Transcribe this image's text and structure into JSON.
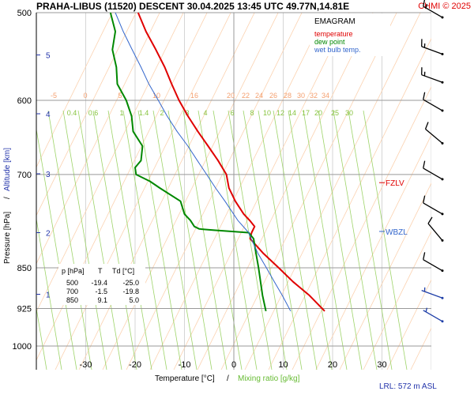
{
  "header": {
    "title": "PRAHA-LIBUS (11520)   DESCENT   30.04.2025 13:45 UTC  49.77N,14.81E",
    "brand": "CHMI © 2025"
  },
  "legend": {
    "title": "EMAGRAM",
    "items": [
      {
        "label": "temperature",
        "color": "#e00000"
      },
      {
        "label": "dew point",
        "color": "#008800"
      },
      {
        "label": "wet bulb temp.",
        "color": "#3366cc"
      }
    ]
  },
  "axes": {
    "x_label_part1": "Temperature [°C]",
    "x_label_sep": "/",
    "x_label_part2": "Mixing ratio [g/kg]",
    "y_label_part1": "Pressure [hPa]",
    "y_label_sep": "/",
    "y_label_part2": "Altitude [km]"
  },
  "levels": {
    "fzlv": "FZLV",
    "wbzl": "WBZL"
  },
  "table": {
    "header": [
      "p [hPa]",
      "T",
      "Td [°C]"
    ],
    "rows": [
      [
        "500",
        "-19.4",
        "-25.0"
      ],
      [
        "700",
        "-1.5",
        "-19.8"
      ],
      [
        "850",
        "9.1",
        "5.0"
      ]
    ]
  },
  "lrl": "LRL: 572 m ASL",
  "chart_data": {
    "type": "line",
    "title": "EMAGRAM",
    "xlim": [
      -40,
      40
    ],
    "ylim": [
      1000,
      500
    ],
    "y_scale": "log",
    "x_ticks": [
      -30,
      -20,
      -10,
      0,
      10,
      20,
      30
    ],
    "y_ticks": [
      500,
      600,
      700,
      850,
      925,
      1000
    ],
    "altitude_ticks_km": [
      1,
      2,
      3,
      4,
      5
    ],
    "altitude_tick_pressures": [
      898,
      790,
      699,
      617,
      546
    ],
    "isotherm_labels": [
      -5,
      0,
      5,
      10,
      16,
      20,
      22,
      24,
      26,
      28,
      30,
      32,
      34
    ],
    "mixing_ratio_labels": [
      "0.4",
      "0.6",
      "1",
      "1.4",
      "2",
      "3",
      "4",
      "6",
      "8",
      "10",
      "12",
      "14",
      "17",
      "20",
      "25",
      "30"
    ],
    "series": [
      {
        "name": "temperature",
        "color": "#e00000",
        "p": [
          930,
          900,
          875,
          850,
          825,
          800,
          790,
          780,
          770,
          760,
          740,
          720,
          700,
          680,
          660,
          640,
          620,
          600,
          580,
          560,
          540,
          520,
          500
        ],
        "values": [
          18.4,
          15.3,
          12.0,
          9.1,
          6.0,
          3.3,
          3.6,
          4.2,
          3.2,
          2.0,
          0.3,
          -1.0,
          -1.5,
          -3.2,
          -5.2,
          -7.3,
          -9.3,
          -11.1,
          -12.6,
          -14.0,
          -15.8,
          -17.8,
          -19.4
        ]
      },
      {
        "name": "dew point",
        "color": "#008800",
        "p": [
          930,
          900,
          875,
          850,
          825,
          800,
          790,
          786,
          784,
          780,
          770,
          760,
          740,
          720,
          710,
          700,
          690,
          680,
          660,
          640,
          620,
          600,
          580,
          560,
          540,
          520,
          500
        ],
        "values": [
          6.5,
          5.8,
          5.4,
          5.0,
          4.5,
          4.0,
          3.0,
          -4.0,
          -7.0,
          -8.0,
          -8.8,
          -10.0,
          -10.8,
          -15.0,
          -17.0,
          -19.8,
          -20.0,
          -18.8,
          -18.5,
          -20.4,
          -20.7,
          -21.8,
          -23.6,
          -23.8,
          -24.6,
          -24.0,
          -25.0
        ]
      },
      {
        "name": "wet bulb temp.",
        "color": "#3366cc",
        "p": [
          930,
          900,
          875,
          850,
          825,
          800,
          790,
          770,
          740,
          720,
          700,
          680,
          660,
          640,
          620,
          600,
          580,
          560,
          540,
          520,
          500
        ],
        "values": [
          11.5,
          9.8,
          8.2,
          6.6,
          4.9,
          3.5,
          3.0,
          0.8,
          -1.8,
          -3.7,
          -5.5,
          -7.4,
          -9.3,
          -11.5,
          -13.5,
          -15.3,
          -17.2,
          -18.8,
          -20.6,
          -22.4,
          -24.0
        ]
      }
    ],
    "levels": [
      {
        "name": "FZLV",
        "p": 712
      },
      {
        "name": "WBZL",
        "p": 788
      }
    ],
    "wind_barbs": [
      {
        "p": 505,
        "dir": 300,
        "speed": 15
      },
      {
        "p": 545,
        "dir": 290,
        "speed": 15
      },
      {
        "p": 578,
        "dir": 290,
        "speed": 15
      },
      {
        "p": 613,
        "dir": 300,
        "speed": 10
      },
      {
        "p": 656,
        "dir": 310,
        "speed": 10
      },
      {
        "p": 707,
        "dir": 300,
        "speed": 10
      },
      {
        "p": 760,
        "dir": 300,
        "speed": 10
      },
      {
        "p": 803,
        "dir": 320,
        "speed": 10
      },
      {
        "p": 855,
        "dir": 300,
        "speed": 10
      },
      {
        "p": 905,
        "dir": 290,
        "speed": 5
      },
      {
        "p": 950,
        "dir": 300,
        "speed": 5
      }
    ]
  }
}
